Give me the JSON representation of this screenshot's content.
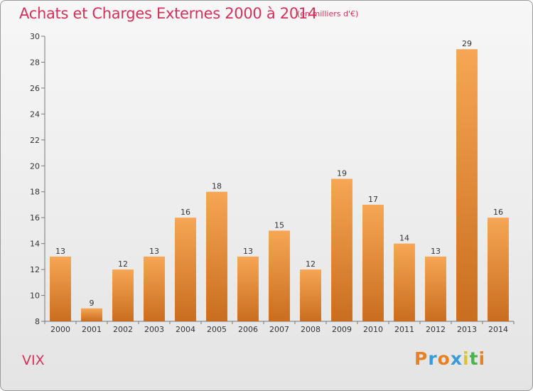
{
  "header": {
    "title": "Achats et Charges Externes 2000 à 2014",
    "subtitle": "(en milliers d'€)"
  },
  "footer": {
    "commune": "VIX",
    "logo_text": "Proxiti"
  },
  "colors": {
    "accent": "#d2325a",
    "bar_light": "#f6a654",
    "bar_dark": "#c96d1f",
    "logo_letters": [
      "#e8811f",
      "#3a9ad9",
      "#e8811f",
      "#3a9ad9",
      "#d6c82a",
      "#4bb34b",
      "#e8811f"
    ]
  },
  "chart_data": {
    "type": "bar",
    "title": "Achats et Charges Externes 2000 à 2014",
    "subtitle": "(en milliers d'€)",
    "xlabel": "",
    "ylabel": "",
    "categories": [
      "2000",
      "2001",
      "2002",
      "2003",
      "2004",
      "2005",
      "2006",
      "2007",
      "2008",
      "2009",
      "2010",
      "2011",
      "2012",
      "2013",
      "2014"
    ],
    "values": [
      13,
      9,
      12,
      13,
      16,
      18,
      13,
      15,
      12,
      19,
      17,
      14,
      13,
      29,
      16
    ],
    "ylim": [
      8,
      30
    ],
    "yticks": [
      8,
      10,
      12,
      14,
      16,
      18,
      20,
      22,
      24,
      26,
      28,
      30
    ],
    "grid": false,
    "legend": "none"
  }
}
